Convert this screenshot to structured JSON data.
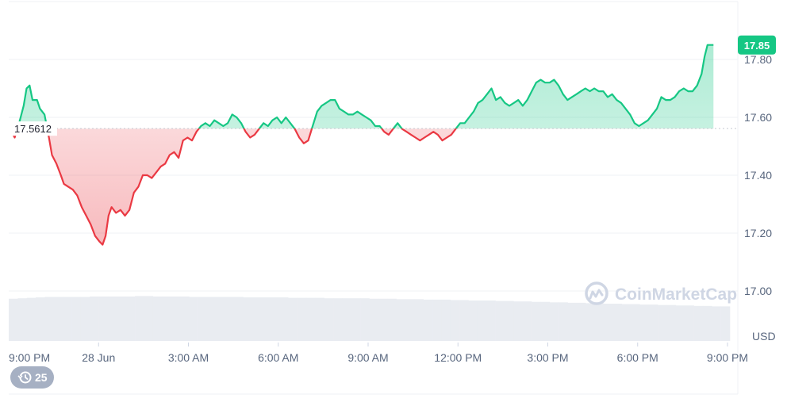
{
  "chart_data": {
    "type": "line",
    "title": "",
    "xlabel": "",
    "ylabel": "",
    "currency_label": "USD",
    "ylim": [
      16.95,
      18.0
    ],
    "x_range_hours": [
      0,
      24.2
    ],
    "y_ticks": [
      {
        "value": 17.8,
        "label": "17.80"
      },
      {
        "value": 17.6,
        "label": "17.60"
      },
      {
        "value": 17.4,
        "label": "17.40"
      },
      {
        "value": 17.2,
        "label": "17.20"
      },
      {
        "value": 17.0,
        "label": "17.00"
      }
    ],
    "x_ticks": [
      {
        "hour": 0,
        "label": "9:00 PM"
      },
      {
        "hour": 3,
        "label": "28 Jun"
      },
      {
        "hour": 6,
        "label": "3:00 AM"
      },
      {
        "hour": 9,
        "label": "6:00 AM"
      },
      {
        "hour": 12,
        "label": "9:00 AM"
      },
      {
        "hour": 15,
        "label": "12:00 PM"
      },
      {
        "hour": 18,
        "label": "3:00 PM"
      },
      {
        "hour": 21,
        "label": "6:00 PM"
      },
      {
        "hour": 24,
        "label": "9:00 PM"
      }
    ],
    "reference": {
      "value": 17.5612,
      "label": "17.5612"
    },
    "last": {
      "value": 17.85,
      "label": "17.85"
    },
    "colors": {
      "up": "#16c784",
      "down": "#ea3943",
      "grid": "#eff2f5",
      "volume": "#e9ecf1",
      "reference": "#c6c9d1",
      "axis_text": "#58667e"
    },
    "series": [
      {
        "points": [
          [
            0.0,
            17.56
          ],
          [
            0.1,
            17.55
          ],
          [
            0.2,
            17.53
          ],
          [
            0.35,
            17.58
          ],
          [
            0.5,
            17.64
          ],
          [
            0.6,
            17.7
          ],
          [
            0.7,
            17.71
          ],
          [
            0.8,
            17.66
          ],
          [
            0.95,
            17.66
          ],
          [
            1.05,
            17.63
          ],
          [
            1.2,
            17.61
          ],
          [
            1.35,
            17.53
          ],
          [
            1.45,
            17.47
          ],
          [
            1.6,
            17.44
          ],
          [
            1.75,
            17.4
          ],
          [
            1.85,
            17.37
          ],
          [
            2.0,
            17.36
          ],
          [
            2.15,
            17.35
          ],
          [
            2.3,
            17.33
          ],
          [
            2.45,
            17.29
          ],
          [
            2.6,
            17.26
          ],
          [
            2.75,
            17.23
          ],
          [
            2.9,
            17.19
          ],
          [
            3.05,
            17.17
          ],
          [
            3.15,
            17.16
          ],
          [
            3.25,
            17.19
          ],
          [
            3.35,
            17.26
          ],
          [
            3.45,
            17.29
          ],
          [
            3.6,
            17.27
          ],
          [
            3.75,
            17.28
          ],
          [
            3.9,
            17.26
          ],
          [
            4.05,
            17.28
          ],
          [
            4.2,
            17.34
          ],
          [
            4.35,
            17.36
          ],
          [
            4.5,
            17.4
          ],
          [
            4.65,
            17.4
          ],
          [
            4.8,
            17.39
          ],
          [
            4.95,
            17.41
          ],
          [
            5.1,
            17.43
          ],
          [
            5.25,
            17.44
          ],
          [
            5.4,
            17.47
          ],
          [
            5.55,
            17.48
          ],
          [
            5.7,
            17.46
          ],
          [
            5.85,
            17.52
          ],
          [
            6.0,
            17.53
          ],
          [
            6.15,
            17.52
          ],
          [
            6.3,
            17.55
          ],
          [
            6.45,
            17.57
          ],
          [
            6.6,
            17.58
          ],
          [
            6.75,
            17.57
          ],
          [
            6.9,
            17.59
          ],
          [
            7.05,
            17.58
          ],
          [
            7.2,
            17.57
          ],
          [
            7.35,
            17.58
          ],
          [
            7.5,
            17.61
          ],
          [
            7.65,
            17.6
          ],
          [
            7.8,
            17.58
          ],
          [
            7.95,
            17.55
          ],
          [
            8.1,
            17.53
          ],
          [
            8.25,
            17.54
          ],
          [
            8.4,
            17.56
          ],
          [
            8.55,
            17.58
          ],
          [
            8.7,
            17.57
          ],
          [
            8.85,
            17.59
          ],
          [
            9.0,
            17.6
          ],
          [
            9.15,
            17.58
          ],
          [
            9.3,
            17.6
          ],
          [
            9.45,
            17.58
          ],
          [
            9.6,
            17.56
          ],
          [
            9.75,
            17.53
          ],
          [
            9.9,
            17.51
          ],
          [
            10.05,
            17.52
          ],
          [
            10.2,
            17.57
          ],
          [
            10.35,
            17.62
          ],
          [
            10.5,
            17.64
          ],
          [
            10.65,
            17.65
          ],
          [
            10.8,
            17.66
          ],
          [
            10.95,
            17.66
          ],
          [
            11.1,
            17.63
          ],
          [
            11.25,
            17.62
          ],
          [
            11.4,
            17.61
          ],
          [
            11.55,
            17.61
          ],
          [
            11.7,
            17.62
          ],
          [
            11.85,
            17.61
          ],
          [
            12.0,
            17.6
          ],
          [
            12.15,
            17.59
          ],
          [
            12.3,
            17.57
          ],
          [
            12.45,
            17.57
          ],
          [
            12.6,
            17.55
          ],
          [
            12.75,
            17.54
          ],
          [
            12.9,
            17.56
          ],
          [
            13.05,
            17.58
          ],
          [
            13.2,
            17.56
          ],
          [
            13.35,
            17.55
          ],
          [
            13.5,
            17.54
          ],
          [
            13.65,
            17.53
          ],
          [
            13.8,
            17.52
          ],
          [
            13.95,
            17.53
          ],
          [
            14.1,
            17.54
          ],
          [
            14.25,
            17.55
          ],
          [
            14.4,
            17.54
          ],
          [
            14.55,
            17.52
          ],
          [
            14.7,
            17.53
          ],
          [
            14.85,
            17.54
          ],
          [
            15.0,
            17.56
          ],
          [
            15.15,
            17.58
          ],
          [
            15.3,
            17.58
          ],
          [
            15.45,
            17.6
          ],
          [
            15.6,
            17.62
          ],
          [
            15.75,
            17.65
          ],
          [
            15.9,
            17.66
          ],
          [
            16.05,
            17.68
          ],
          [
            16.2,
            17.7
          ],
          [
            16.35,
            17.66
          ],
          [
            16.5,
            17.67
          ],
          [
            16.65,
            17.65
          ],
          [
            16.8,
            17.64
          ],
          [
            16.95,
            17.65
          ],
          [
            17.1,
            17.66
          ],
          [
            17.25,
            17.64
          ],
          [
            17.4,
            17.66
          ],
          [
            17.55,
            17.69
          ],
          [
            17.7,
            17.72
          ],
          [
            17.85,
            17.73
          ],
          [
            18.0,
            17.72
          ],
          [
            18.15,
            17.72
          ],
          [
            18.3,
            17.73
          ],
          [
            18.45,
            17.71
          ],
          [
            18.6,
            17.68
          ],
          [
            18.75,
            17.66
          ],
          [
            18.9,
            17.67
          ],
          [
            19.05,
            17.68
          ],
          [
            19.2,
            17.69
          ],
          [
            19.35,
            17.7
          ],
          [
            19.5,
            17.69
          ],
          [
            19.65,
            17.7
          ],
          [
            19.8,
            17.69
          ],
          [
            19.95,
            17.69
          ],
          [
            20.1,
            17.67
          ],
          [
            20.25,
            17.68
          ],
          [
            20.4,
            17.66
          ],
          [
            20.55,
            17.65
          ],
          [
            20.7,
            17.63
          ],
          [
            20.85,
            17.61
          ],
          [
            21.0,
            17.58
          ],
          [
            21.15,
            17.57
          ],
          [
            21.3,
            17.58
          ],
          [
            21.45,
            17.59
          ],
          [
            21.6,
            17.61
          ],
          [
            21.75,
            17.63
          ],
          [
            21.9,
            17.67
          ],
          [
            22.05,
            17.66
          ],
          [
            22.2,
            17.66
          ],
          [
            22.35,
            17.67
          ],
          [
            22.5,
            17.69
          ],
          [
            22.65,
            17.7
          ],
          [
            22.8,
            17.69
          ],
          [
            22.95,
            17.69
          ],
          [
            23.1,
            17.71
          ],
          [
            23.25,
            17.75
          ],
          [
            23.35,
            17.81
          ],
          [
            23.45,
            17.85
          ],
          [
            23.65,
            17.85
          ]
        ]
      }
    ],
    "volume": [
      0.94,
      0.95,
      0.96,
      0.97,
      0.98,
      0.98,
      0.98,
      0.98,
      0.98,
      0.99,
      0.99,
      0.99,
      0.99,
      0.99,
      1.0,
      1.0,
      0.99,
      0.99,
      0.99,
      0.99,
      0.98,
      0.98,
      0.98,
      0.98,
      0.98,
      0.98,
      0.97,
      0.97,
      0.97,
      0.97,
      0.97,
      0.96,
      0.96,
      0.96,
      0.96,
      0.95,
      0.95,
      0.95,
      0.95,
      0.95,
      0.94,
      0.94,
      0.94,
      0.93,
      0.93,
      0.93,
      0.92,
      0.92,
      0.92,
      0.91,
      0.91,
      0.9,
      0.9,
      0.9,
      0.89,
      0.89,
      0.88,
      0.88,
      0.87,
      0.87,
      0.86,
      0.86,
      0.85,
      0.85,
      0.84,
      0.84,
      0.83,
      0.83,
      0.82,
      0.82,
      0.81,
      0.81,
      0.8,
      0.8,
      0.79,
      0.79,
      0.78,
      0.78,
      0.77,
      0.77
    ]
  },
  "brand": {
    "name": "CoinMarketCap",
    "icon": "coinmarketcap-logo-icon"
  },
  "history_badge": {
    "icon": "history-icon",
    "value": "25"
  }
}
